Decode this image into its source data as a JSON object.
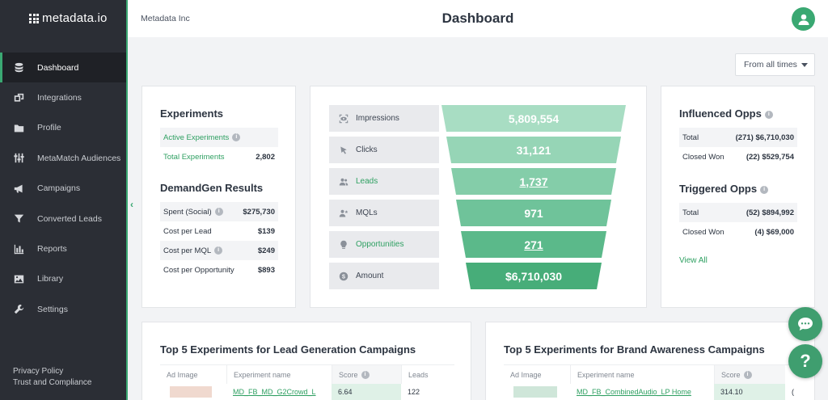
{
  "brand": {
    "name": "metadata.io",
    "accent": "#3aa872"
  },
  "sidebar": {
    "items": [
      {
        "label": "Dashboard",
        "icon": "database-icon",
        "active": true
      },
      {
        "label": "Integrations",
        "icon": "integrations-icon"
      },
      {
        "label": "Profile",
        "icon": "folder-icon"
      },
      {
        "label": "MetaMatch Audiences",
        "icon": "sliders-icon"
      },
      {
        "label": "Campaigns",
        "icon": "megaphone-icon"
      },
      {
        "label": "Converted Leads",
        "icon": "filter-icon"
      },
      {
        "label": "Reports",
        "icon": "bar-chart-icon"
      },
      {
        "label": "Library",
        "icon": "image-icon"
      },
      {
        "label": "Settings",
        "icon": "wrench-icon"
      }
    ],
    "footer": {
      "privacy": "Privacy Policy",
      "trust": "Trust and Compliance"
    }
  },
  "header": {
    "company": "Metadata Inc",
    "title": "Dashboard"
  },
  "range": {
    "selected": "From all times"
  },
  "experiments": {
    "title": "Experiments",
    "active_label": "Active Experiments",
    "total_label": "Total Experiments",
    "total_value": "2,802"
  },
  "demandgen": {
    "title": "DemandGen Results",
    "rows": [
      {
        "label": "Spent (Social)",
        "value": "$275,730",
        "info": true
      },
      {
        "label": "Cost per Lead",
        "value": "$139",
        "info": false
      },
      {
        "label": "Cost per MQL",
        "value": "$249",
        "info": true
      },
      {
        "label": "Cost per Opportunity",
        "value": "$893",
        "info": false
      }
    ]
  },
  "funnel": {
    "colors": [
      "#a8ddc3",
      "#96d5b6",
      "#84cda9",
      "#6fc39a",
      "#5bb98a",
      "#47ad79"
    ],
    "rows": [
      {
        "label": "Impressions",
        "value": "5,809,554",
        "icon": "eye-scan-icon",
        "link": false,
        "label_green": false
      },
      {
        "label": "Clicks",
        "value": "31,121",
        "icon": "cursor-icon",
        "link": false,
        "label_green": false
      },
      {
        "label": "Leads",
        "value": "1,737",
        "icon": "users-icon",
        "link": true,
        "label_green": true
      },
      {
        "label": "MQLs",
        "value": "971",
        "icon": "user-star-icon",
        "link": false,
        "label_green": false
      },
      {
        "label": "Opportunities",
        "value": "271",
        "icon": "lightbulb-icon",
        "link": true,
        "label_green": true
      },
      {
        "label": "Amount",
        "value": "$6,710,030",
        "icon": "dollar-icon",
        "link": false,
        "label_green": false
      }
    ]
  },
  "influenced": {
    "title": "Influenced Opps",
    "rows": [
      {
        "label": "Total",
        "value": "(271) $6,710,030"
      },
      {
        "label": "Closed Won",
        "value": "(22) $529,754"
      }
    ]
  },
  "triggered": {
    "title": "Triggered Opps",
    "rows": [
      {
        "label": "Total",
        "value": "(52) $894,992"
      },
      {
        "label": "Closed Won",
        "value": "(4) $69,000"
      }
    ],
    "view_all": "View All"
  },
  "lead_gen_table": {
    "title": "Top 5 Experiments for Lead Generation Campaigns",
    "headers": [
      "Ad Image",
      "Experiment name",
      "Score",
      "Leads"
    ],
    "row": {
      "name": "MD_FB_MD_G2Crowd_L",
      "score": "6.64",
      "leads": "122"
    }
  },
  "brand_table": {
    "title": "Top 5 Experiments for Brand Awareness Campaigns",
    "headers": [
      "Ad Image",
      "Experiment name",
      "Score"
    ],
    "row": {
      "name": "MD_FB_CombinedAudio_LP Home",
      "score": "314.10",
      "extra": "("
    }
  }
}
